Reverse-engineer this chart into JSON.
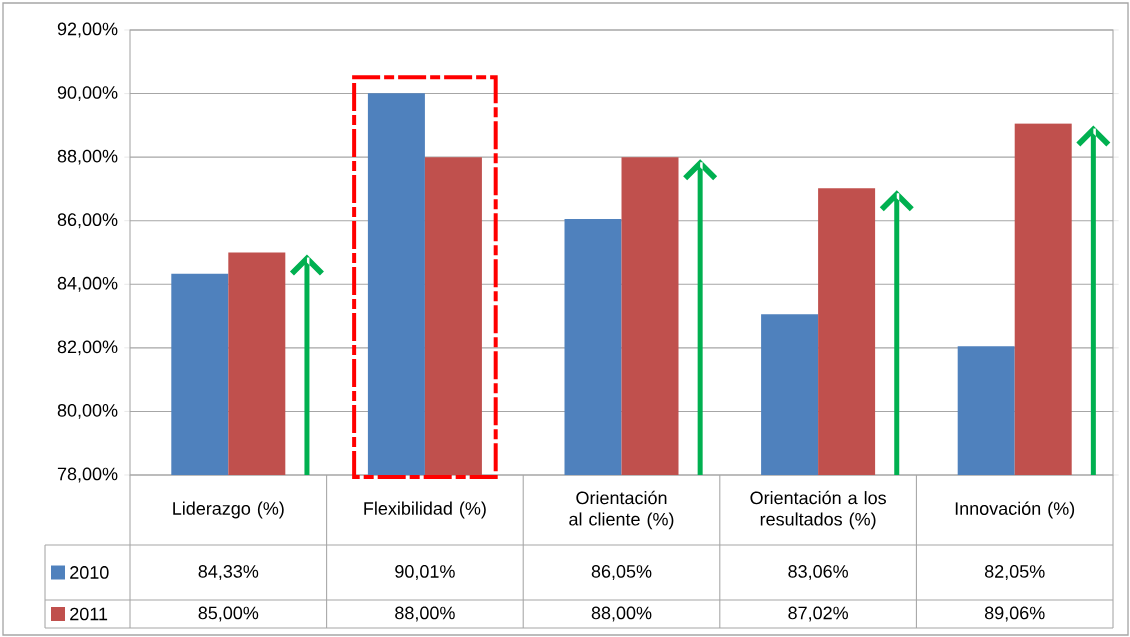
{
  "chart_data": {
    "type": "bar",
    "categories": [
      "Liderazgo (%)",
      "Flexibilidad (%)",
      "Orientación al cliente (%)",
      "Orientación a los resultados (%)",
      "Innovación (%)"
    ],
    "series": [
      {
        "name": "2010",
        "color": "#4f81bd",
        "values": [
          84.33,
          90.01,
          86.05,
          83.06,
          82.05
        ],
        "value_labels": [
          "84,33%",
          "90,01%",
          "86,05%",
          "83,06%",
          "82,05%"
        ]
      },
      {
        "name": "2011",
        "color": "#c0504d",
        "values": [
          85.0,
          88.0,
          88.0,
          87.02,
          89.06
        ],
        "value_labels": [
          "85,00%",
          "88,00%",
          "88,00%",
          "87,02%",
          "89,06%"
        ]
      }
    ],
    "ylim": [
      78,
      92
    ],
    "yticks": [
      {
        "value": 78,
        "label": "78,00%"
      },
      {
        "value": 80,
        "label": "80,00%"
      },
      {
        "value": 82,
        "label": "82,00%"
      },
      {
        "value": 84,
        "label": "84,00%"
      },
      {
        "value": 86,
        "label": "86,00%"
      },
      {
        "value": 88,
        "label": "88,00%"
      },
      {
        "value": 90,
        "label": "90,00%"
      },
      {
        "value": 92,
        "label": "92,00%"
      }
    ],
    "grid": "y",
    "legend": "bottom"
  }
}
